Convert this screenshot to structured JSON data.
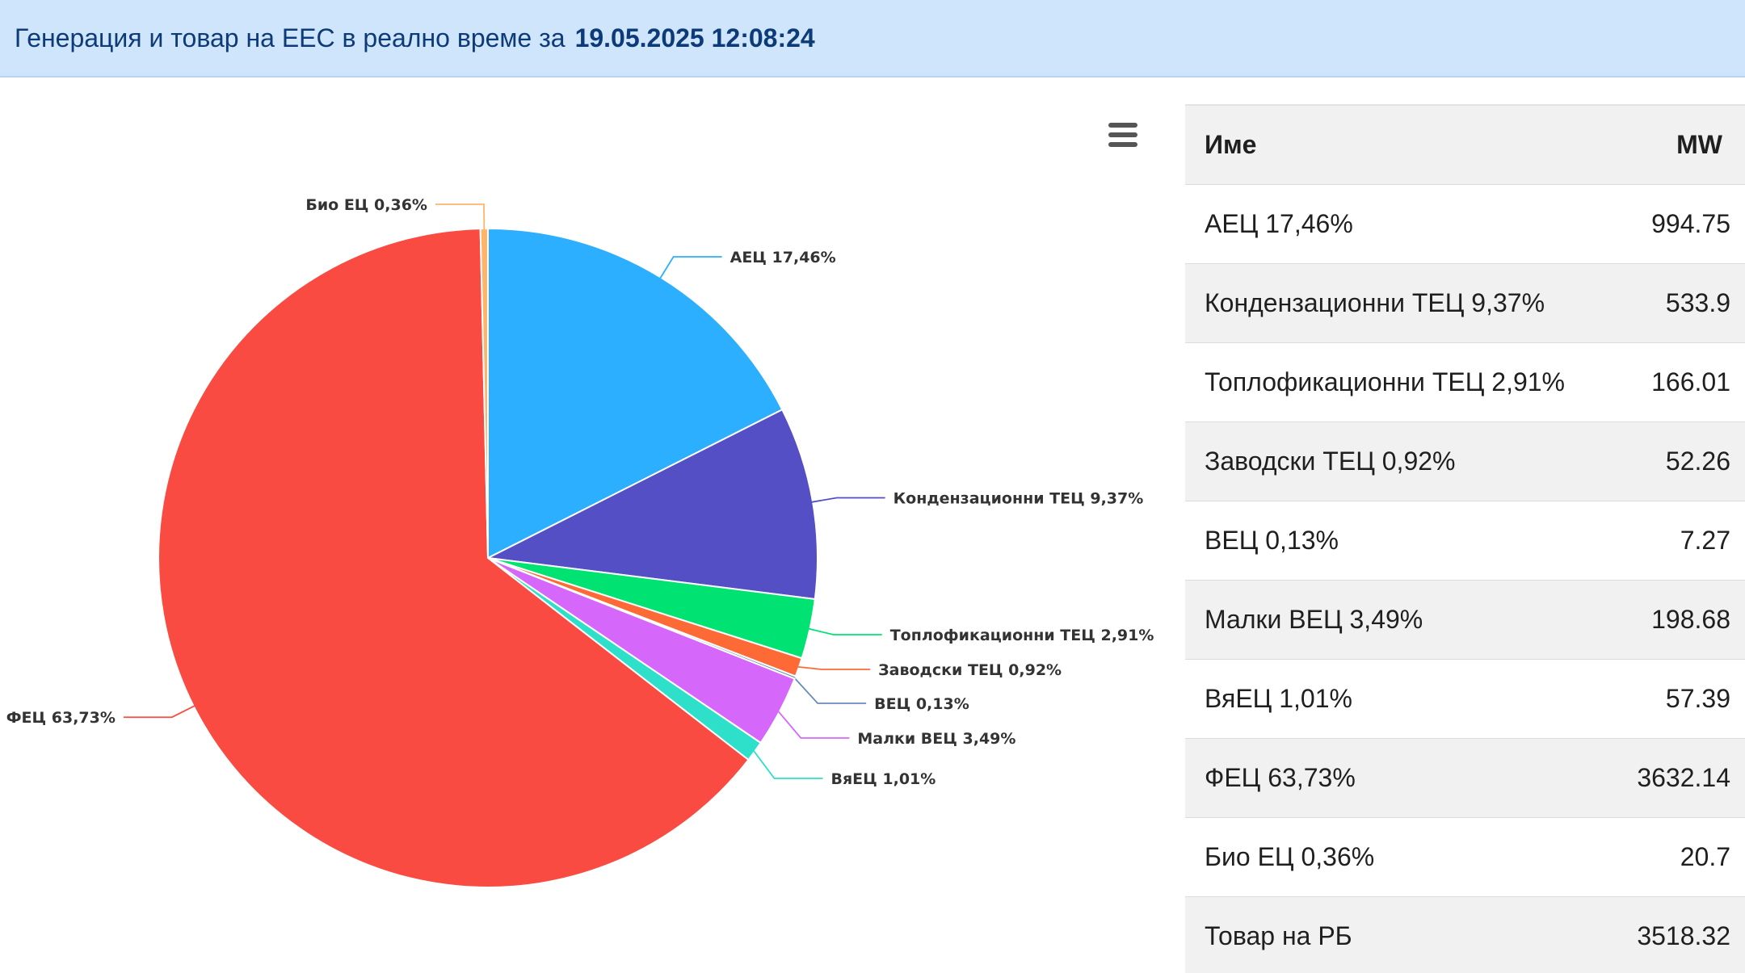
{
  "header": {
    "title": "Генерация и товар на ЕЕС в реално време за",
    "timestamp": "19.05.2025 12:08:24"
  },
  "table": {
    "col_name": "Име",
    "col_mw": "MW",
    "rows": [
      {
        "name": "АЕЦ 17,46%",
        "mw": "994.75"
      },
      {
        "name": "Кондензационни ТЕЦ 9,37%",
        "mw": "533.9"
      },
      {
        "name": "Топлофикационни ТЕЦ 2,91%",
        "mw": "166.01"
      },
      {
        "name": "Заводски ТЕЦ 0,92%",
        "mw": "52.26"
      },
      {
        "name": "ВЕЦ 0,13%",
        "mw": "7.27"
      },
      {
        "name": "Малки ВЕЦ 3,49%",
        "mw": "198.68"
      },
      {
        "name": "ВяЕЦ 1,01%",
        "mw": "57.39"
      },
      {
        "name": "ФЕЦ 63,73%",
        "mw": "3632.14"
      },
      {
        "name": "Био ЕЦ 0,36%",
        "mw": "20.7"
      },
      {
        "name": "Товар на РБ",
        "mw": "3518.32"
      }
    ]
  },
  "chart_data": {
    "type": "pie",
    "title": "",
    "slices": [
      {
        "label": "АЕЦ 17,46%",
        "value": 994.75,
        "percent": 17.46,
        "color": "#2caffe"
      },
      {
        "label": "Кондензационни ТЕЦ 9,37%",
        "value": 533.9,
        "percent": 9.37,
        "color": "#544fc5"
      },
      {
        "label": "Топлофикационни ТЕЦ 2,91%",
        "value": 166.01,
        "percent": 2.91,
        "color": "#00e272"
      },
      {
        "label": "Заводски ТЕЦ 0,92%",
        "value": 52.26,
        "percent": 0.92,
        "color": "#fe6a35"
      },
      {
        "label": "ВЕЦ 0,13%",
        "value": 7.27,
        "percent": 0.13,
        "color": "#6b8abc"
      },
      {
        "label": "Малки ВЕЦ 3,49%",
        "value": 198.68,
        "percent": 3.49,
        "color": "#d568fb"
      },
      {
        "label": "ВяЕЦ 1,01%",
        "value": 57.39,
        "percent": 1.01,
        "color": "#2ee0ca"
      },
      {
        "label": "ФЕЦ 63,73%",
        "value": 3632.14,
        "percent": 63.73,
        "color": "#fa4b42"
      },
      {
        "label": "Био ЕЦ 0,36%",
        "value": 20.7,
        "percent": 0.36,
        "color": "#feb56a"
      }
    ]
  },
  "icons": {
    "menu": "hamburger-menu-icon"
  }
}
